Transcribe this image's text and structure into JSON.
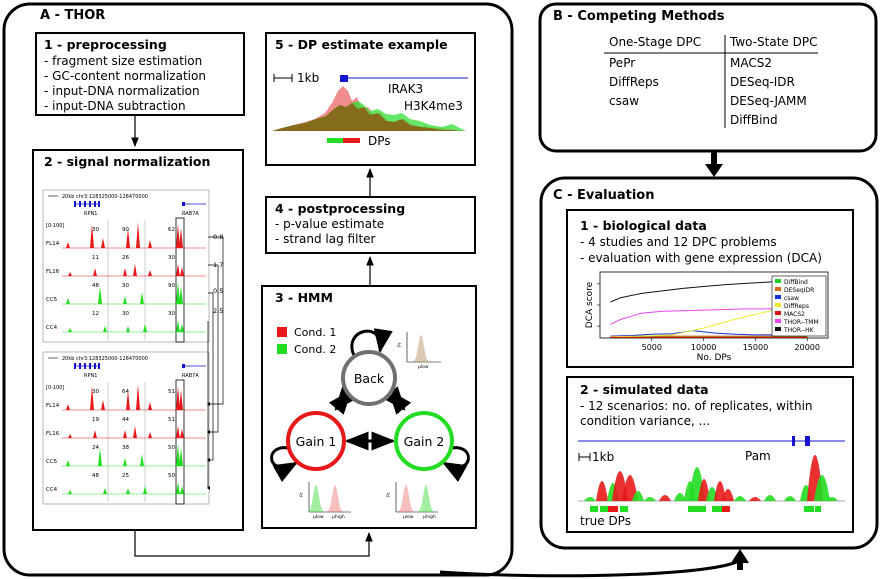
{
  "panel_a": {
    "title": "A - THOR",
    "s1": {
      "title": "1 - preprocessing",
      "items": [
        "- fragment size estimation",
        "- GC-content normalization",
        "- input-DNA normalization",
        "- input-DNA subtraction"
      ]
    },
    "s2": {
      "title": "2 - signal normalization",
      "scale": "20kb",
      "region": "chr3:128325000-128470000",
      "gene_left": "RPN1",
      "gene_right": "RAB7A",
      "range": "[0-100]",
      "tracks": [
        "FL14",
        "FL16",
        "CC5",
        "CC4"
      ],
      "top_values": [
        [
          "30",
          "90",
          "62"
        ],
        [
          "11",
          "26",
          "30"
        ],
        [
          "48",
          "30",
          "90"
        ],
        [
          "12",
          "30",
          "30"
        ]
      ],
      "bottom_values": [
        [
          "30",
          "64",
          "51"
        ],
        [
          "19",
          "44",
          "51"
        ],
        [
          "24",
          "38",
          "50"
        ],
        [
          "48",
          "25",
          "50"
        ]
      ],
      "factors": [
        "0.8",
        "1.7",
        "0.5",
        "2.5"
      ]
    },
    "s3": {
      "title": "3 - HMM",
      "legend": [
        "Cond. 1",
        "Cond. 2"
      ],
      "states": {
        "back": "Back",
        "gain1": "Gain 1",
        "gain2": "Gain 2"
      },
      "axis": {
        "density": "Pr",
        "low": "μlow",
        "high": "μhigh"
      }
    },
    "s4": {
      "title": "4 - postprocessing",
      "items": [
        "- p-value estimate",
        "- strand lag filter"
      ]
    },
    "s5": {
      "title": "5 - DP estimate example",
      "scale": "1kb",
      "gene": "IRAK3",
      "mark": "H3K4me3",
      "dps": "DPs"
    }
  },
  "panel_b": {
    "title": "B - Competing Methods",
    "columns": [
      "One-Stage DPC",
      "Two-State DPC"
    ],
    "one_stage": [
      "PePr",
      "DiffReps",
      "csaw"
    ],
    "two_state": [
      "MACS2",
      "DESeq-IDR",
      "DESeq-JAMM",
      "DiffBind"
    ]
  },
  "panel_c": {
    "title": "C - Evaluation",
    "s1": {
      "title": "1 - biological data",
      "items": [
        "- 4 studies and 12 DPC problems",
        "- evaluation with gene expression (DCA)"
      ]
    },
    "s2": {
      "title": "2 - simulated data",
      "items": [
        "- 12 scenarios: no. of replicates, within",
        "condition variance, ..."
      ],
      "scale": "1kb",
      "gene": "Pam",
      "true_dps": "true DPs"
    }
  },
  "colors": {
    "cond1": "#e8191a",
    "cond2": "#22dd22",
    "back": "#707070",
    "gene": "#1515d0",
    "overlap": "#8b5a14"
  },
  "chart_data": {
    "type": "line",
    "title": "",
    "xlabel": "No. DPs",
    "ylabel": "DCA score",
    "xlim": [
      0,
      22000
    ],
    "x_ticks": [
      5000,
      10000,
      15000,
      20000
    ],
    "legend_position": "top-right",
    "series": [
      {
        "name": "DiffBind",
        "color": "#22cc22",
        "x": [
          1000,
          20000
        ],
        "y": [
          0.02,
          0.02
        ]
      },
      {
        "name": "DESeqIDR",
        "color": "#dd6622",
        "x": [
          1000,
          20000
        ],
        "y": [
          0.03,
          0.03
        ]
      },
      {
        "name": "csaw",
        "color": "#1133dd",
        "x": [
          1000,
          3000,
          5000,
          7000,
          9000,
          11000,
          13000,
          15000,
          17000,
          20000
        ],
        "y": [
          0.03,
          0.04,
          0.06,
          0.07,
          0.12,
          0.08,
          0.06,
          0.05,
          0.05,
          0.04
        ]
      },
      {
        "name": "DiffReps",
        "color": "#eeee33",
        "x": [
          1000,
          4000,
          7000,
          10000,
          13000,
          16000,
          18000,
          20000
        ],
        "y": [
          0.02,
          0.03,
          0.05,
          0.16,
          0.3,
          0.42,
          0.5,
          0.55
        ]
      },
      {
        "name": "MACS2",
        "color": "#dd1111",
        "x": [
          1000,
          20000
        ],
        "y": [
          0.01,
          0.01
        ]
      },
      {
        "name": "THOR--TMM",
        "color": "#ee44ee",
        "x": [
          1000,
          2000,
          4000,
          6000,
          8000,
          10000,
          12000,
          14000,
          16000,
          18000,
          20000
        ],
        "y": [
          0.22,
          0.3,
          0.4,
          0.43,
          0.44,
          0.45,
          0.46,
          0.47,
          0.47,
          0.48,
          0.48
        ]
      },
      {
        "name": "THOR--HK",
        "color": "#111111",
        "x": [
          1000,
          2000,
          4000,
          6000,
          8000,
          10000,
          12000,
          14000,
          16000,
          18000,
          20000
        ],
        "y": [
          0.58,
          0.65,
          0.72,
          0.76,
          0.8,
          0.83,
          0.86,
          0.88,
          0.9,
          0.92,
          0.95
        ]
      }
    ]
  }
}
